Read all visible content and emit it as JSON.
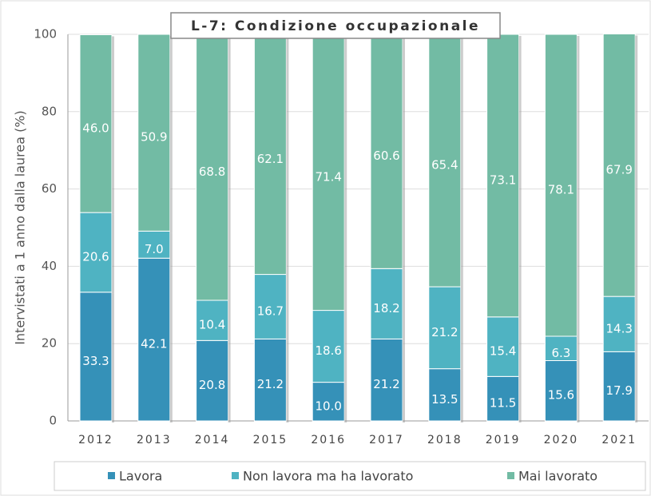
{
  "chart_data": {
    "type": "stacked_bar",
    "title": "L-7: Condizione occupazionale",
    "y_label": "Intervistati a 1 anno dalla laurea (%)",
    "categories": [
      "2012",
      "2013",
      "2014",
      "2015",
      "2016",
      "2017",
      "2018",
      "2019",
      "2020",
      "2021"
    ],
    "series": [
      {
        "name": "Lavora",
        "color": "#3591b8",
        "values": [
          33.3,
          42.1,
          20.8,
          21.2,
          10.0,
          21.2,
          13.5,
          11.5,
          15.6,
          17.9
        ],
        "value_labels": [
          "33.3",
          "42.1",
          "20.8",
          "21.2",
          "10.0",
          "21.2",
          "13.5",
          "11.5",
          "15.6",
          "17.9"
        ]
      },
      {
        "name": "Non lavora ma ha lavorato",
        "color": "#4fb3c2",
        "values": [
          20.6,
          7.0,
          10.4,
          16.7,
          18.6,
          18.2,
          21.2,
          15.4,
          6.3,
          14.3
        ],
        "value_labels": [
          "20.6",
          "7.0",
          "10.4",
          "16.7",
          "18.6",
          "18.2",
          "21.2",
          "15.4",
          "6.3",
          "14.3"
        ]
      },
      {
        "name": "Mai lavorato",
        "color": "#72bba4",
        "values": [
          46.0,
          50.9,
          68.8,
          62.1,
          71.4,
          60.6,
          65.4,
          73.1,
          78.1,
          67.9
        ],
        "value_labels": [
          "46.0",
          "50.9",
          "68.8",
          "62.1",
          "71.4",
          "60.6",
          "65.4",
          "73.1",
          "78.1",
          "67.9"
        ]
      }
    ],
    "ylim": [
      0,
      100
    ],
    "yticks": [
      0,
      20,
      40,
      60,
      80,
      100
    ],
    "grid": true,
    "legend": "bottom"
  }
}
